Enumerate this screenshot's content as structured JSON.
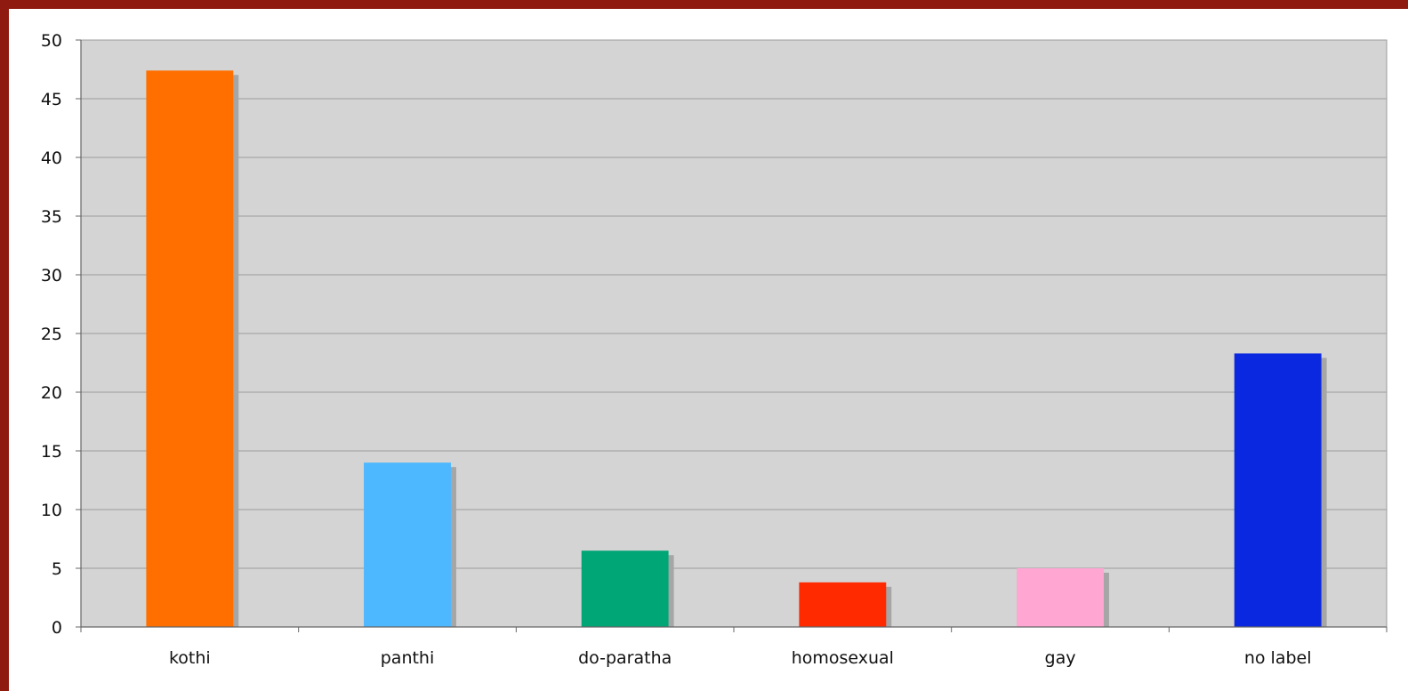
{
  "chart_data": {
    "type": "bar",
    "categories": [
      "kothi",
      "panthi",
      "do-paratha",
      "homosexual",
      "gay",
      "no label"
    ],
    "values": [
      47.4,
      14.0,
      6.5,
      3.8,
      5.0,
      23.3
    ],
    "colors": [
      "#ff6f00",
      "#4db8ff",
      "#00a676",
      "#ff2a00",
      "#ffa6d2",
      "#0a28e0"
    ],
    "title": "",
    "xlabel": "",
    "ylabel": "",
    "ylim": [
      0,
      50
    ],
    "yticks": [
      0,
      5,
      10,
      15,
      20,
      25,
      30,
      35,
      40,
      45,
      50
    ],
    "grid": true,
    "plot_background": "#d4d4d4",
    "frame_color": "#8f1a10",
    "legend": "none"
  }
}
